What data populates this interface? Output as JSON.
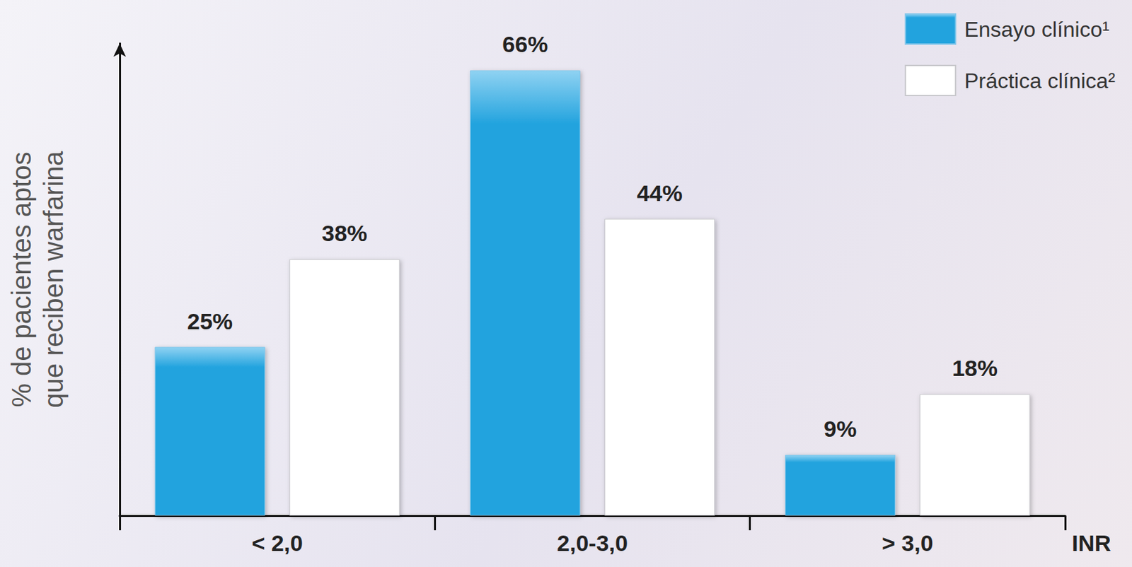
{
  "chart_data": {
    "type": "bar",
    "ylabel": "% de pacientes aptos que reciben warfarina",
    "xlabel": "INR",
    "categories": [
      "< 2,0",
      "2,0-3,0",
      "> 3,0"
    ],
    "series": [
      {
        "name": "Ensayo clínico¹",
        "color": "#22a3de",
        "values": [
          25,
          66,
          9
        ],
        "value_labels": [
          "25%",
          "66%",
          "9%"
        ]
      },
      {
        "name": "Práctica clínica²",
        "color": "#ffffff",
        "values": [
          38,
          44,
          18
        ],
        "value_labels": [
          "38%",
          "44%",
          "18%"
        ]
      }
    ],
    "ylim": [
      0,
      70
    ],
    "yticks": [],
    "tick_labels": "x",
    "data_labels": true,
    "legend": "upper right",
    "grid": false
  }
}
